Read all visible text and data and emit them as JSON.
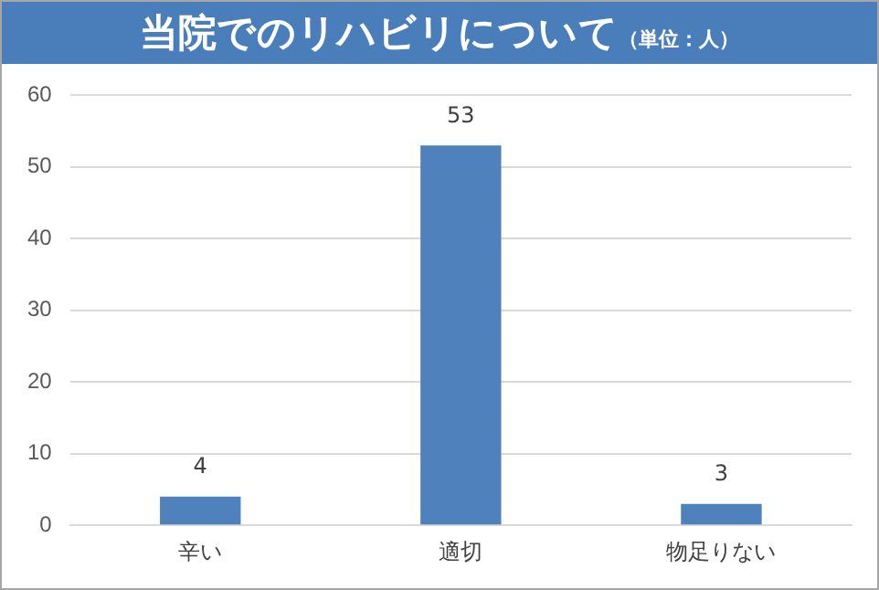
{
  "chart_data": {
    "type": "bar",
    "title": "当院でのリハビリについて",
    "subtitle": "（単位：人）",
    "categories": [
      "辛い",
      "適切",
      "物足りない"
    ],
    "values": [
      4,
      53,
      3
    ],
    "color": "#4f81bd",
    "ylim": [
      0,
      60
    ],
    "yticks": [
      0,
      10,
      20,
      30,
      40,
      50,
      60
    ],
    "grid": "y",
    "data_labels": true
  }
}
